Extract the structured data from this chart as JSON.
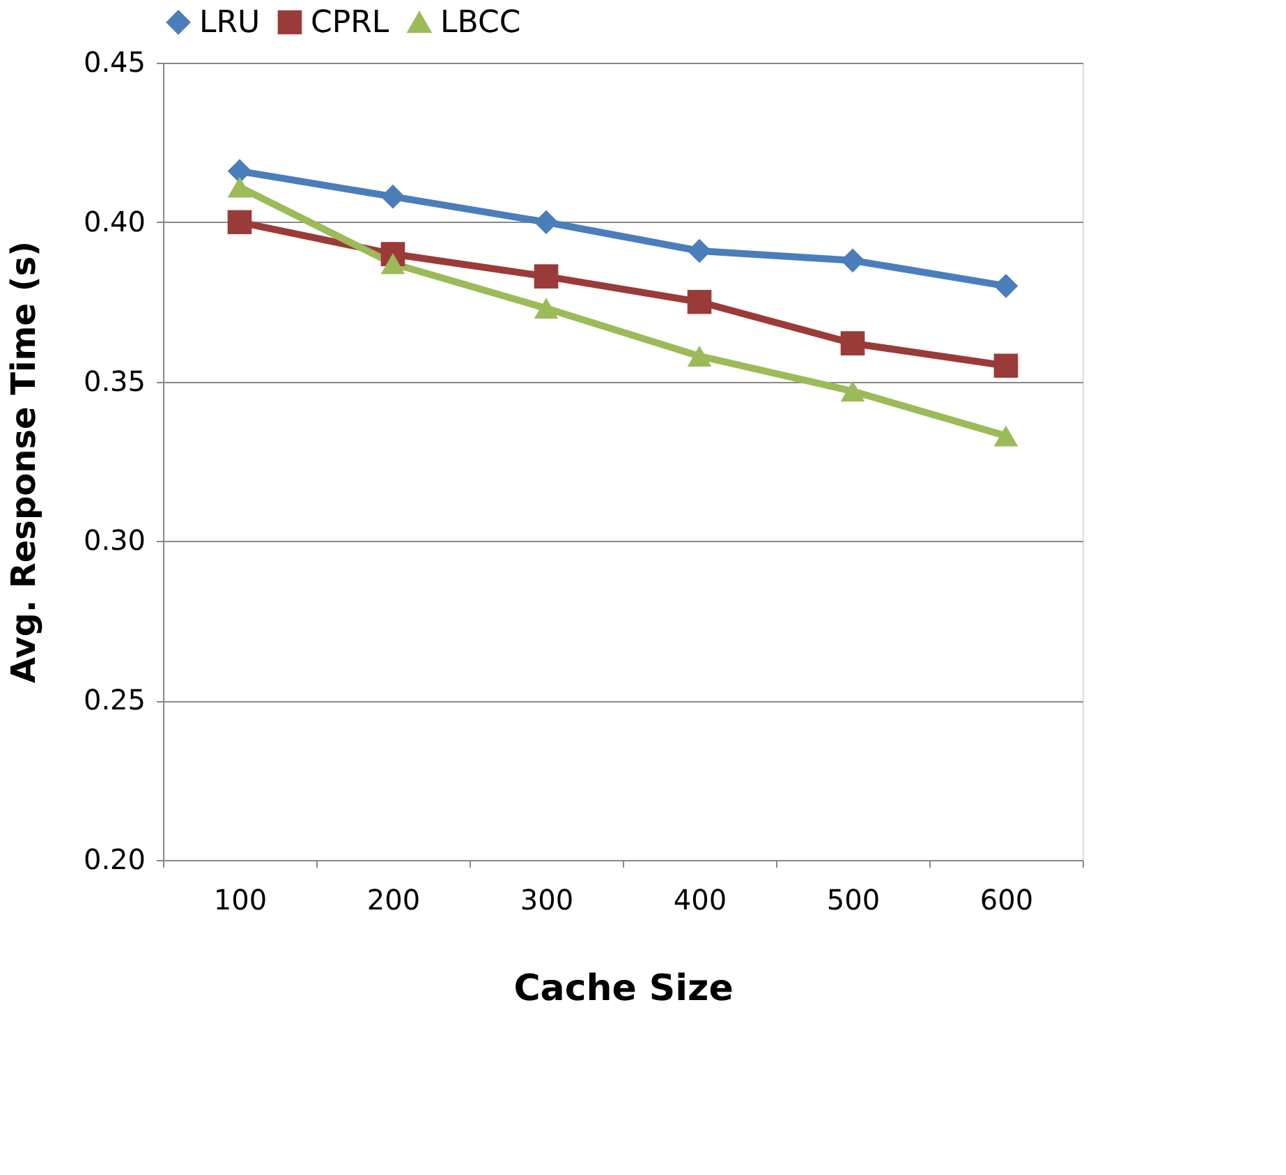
{
  "chart_data": {
    "type": "line",
    "xlabel": "Cache Size",
    "ylabel": "Avg. Response Time (s)",
    "categories": [
      "100",
      "200",
      "300",
      "400",
      "500",
      "600"
    ],
    "series": [
      {
        "name": "LRU",
        "color": "#4a7ebb",
        "marker": "diamond",
        "values": [
          0.416,
          0.408,
          0.4,
          0.391,
          0.388,
          0.38
        ]
      },
      {
        "name": "CPRL",
        "color": "#9b3b39",
        "marker": "square",
        "values": [
          0.4,
          0.39,
          0.383,
          0.375,
          0.362,
          0.355
        ]
      },
      {
        "name": "LBCC",
        "color": "#9bbb59",
        "marker": "triangle",
        "values": [
          0.411,
          0.387,
          0.373,
          0.358,
          0.347,
          0.333
        ]
      }
    ],
    "ylim": [
      0.2,
      0.45
    ],
    "yticks": [
      {
        "value": 0.2,
        "label": "0.20"
      },
      {
        "value": 0.25,
        "label": "0.25"
      },
      {
        "value": 0.3,
        "label": "0.30"
      },
      {
        "value": 0.35,
        "label": "0.35"
      },
      {
        "value": 0.4,
        "label": "0.40"
      },
      {
        "value": 0.45,
        "label": "0.45"
      }
    ],
    "grid": "y",
    "legend": "top",
    "line_style": "solid"
  }
}
